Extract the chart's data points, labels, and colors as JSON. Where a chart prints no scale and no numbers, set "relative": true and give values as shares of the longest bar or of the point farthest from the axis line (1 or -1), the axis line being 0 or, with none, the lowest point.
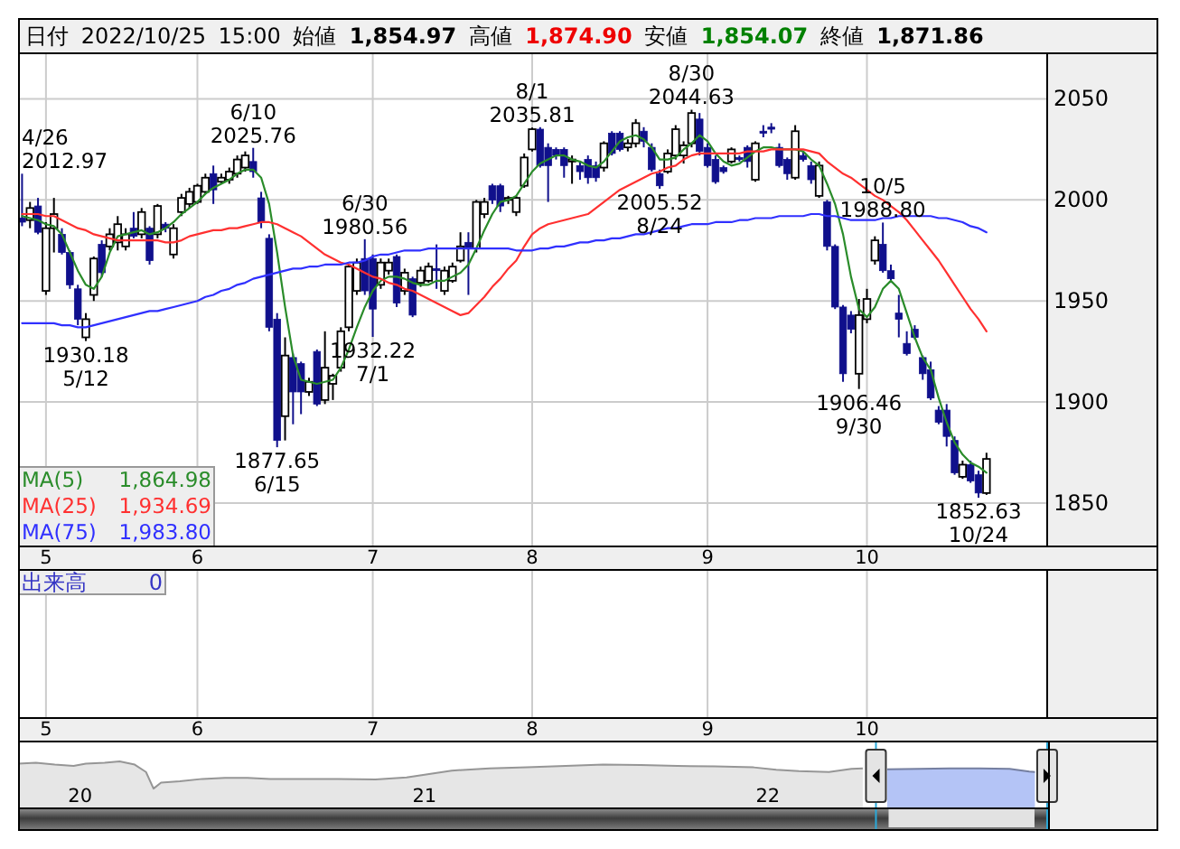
{
  "chart_data": [
    {
      "type": "candlestick",
      "title": "日付 2022/10/25 15:00 始値 1,854.97 高値 1,874.90 安値 1,854.07 終値 1,871.86",
      "categories": [
        null,
        null,
        null,
        "5",
        null,
        null,
        null,
        null,
        null,
        null,
        null,
        null,
        null,
        null,
        null,
        null,
        null,
        null,
        null,
        null,
        null,
        null,
        "6",
        null,
        null,
        null,
        null,
        null,
        null,
        null,
        null,
        null,
        null,
        null,
        null,
        null,
        null,
        null,
        null,
        null,
        null,
        null,
        null,
        null,
        "7",
        null,
        null,
        null,
        null,
        null,
        null,
        null,
        null,
        null,
        null,
        null,
        null,
        null,
        null,
        null,
        null,
        null,
        null,
        null,
        "8",
        null,
        null,
        null,
        null,
        null,
        null,
        null,
        null,
        null,
        null,
        null,
        null,
        null,
        null,
        null,
        null,
        null,
        null,
        null,
        null,
        null,
        "9",
        null,
        null,
        null,
        null,
        null,
        null,
        null,
        null,
        null,
        null,
        null,
        null,
        null,
        null,
        null,
        null,
        null,
        null,
        null,
        "10",
        null,
        null,
        null,
        null,
        null,
        null,
        null,
        null,
        null,
        null,
        null,
        null,
        null,
        null,
        null
      ],
      "ohlc": [
        [
          1991,
          2012.97,
          1987,
          1989
        ],
        [
          1990,
          1999,
          1986,
          1996
        ],
        [
          1997,
          2001,
          1983,
          1984
        ],
        [
          1955,
          1989,
          1953,
          1986
        ],
        [
          1986,
          2001,
          1974,
          1993
        ],
        [
          1983,
          1986,
          1973,
          1974
        ],
        [
          1974,
          1975,
          1956,
          1958
        ],
        [
          1956,
          1958,
          1938,
          1941
        ],
        [
          1932,
          1944,
          1930.18,
          1941
        ],
        [
          1953,
          1972,
          1950,
          1971
        ],
        [
          1978,
          1980,
          1962,
          1964
        ],
        [
          1977,
          1986,
          1975,
          1983
        ],
        [
          1979,
          1992,
          1975,
          1988
        ],
        [
          1977,
          1986,
          1975,
          1983
        ],
        [
          1986,
          1994,
          1981,
          1982
        ],
        [
          1983,
          1996,
          1981,
          1994
        ],
        [
          1986,
          1987,
          1968,
          1970
        ],
        [
          1983,
          1998,
          1981,
          1997
        ],
        [
          1988,
          1989,
          1984,
          1986
        ],
        [
          1973,
          1988,
          1971,
          1986
        ],
        [
          1994,
          2003,
          1992,
          2001
        ],
        [
          1998,
          2006,
          1996,
          2004
        ],
        [
          1999,
          2008,
          1998,
          2007
        ],
        [
          2004,
          2013,
          2003,
          2011
        ],
        [
          2013,
          2017,
          1998,
          2005
        ],
        [
          2009,
          2013,
          2008,
          2011
        ],
        [
          2010,
          2016,
          2008,
          2014
        ],
        [
          2013,
          2022,
          2011,
          2020
        ],
        [
          2016,
          2024,
          2014,
          2022
        ],
        [
          2019,
          2025.76,
          2011,
          2014
        ],
        [
          2001,
          2004,
          1986,
          1989
        ],
        [
          1981,
          1983,
          1935,
          1937
        ],
        [
          1941,
          1944,
          1877.65,
          1881
        ],
        [
          1893,
          1932,
          1881,
          1923
        ],
        [
          1922,
          1924,
          1889,
          1905
        ],
        [
          1919,
          1920,
          1894,
          1905
        ],
        [
          1905,
          1912,
          1903,
          1910
        ],
        [
          1925,
          1926,
          1898,
          1899
        ],
        [
          1901,
          1935,
          1899,
          1917
        ],
        [
          1909,
          1914,
          1901,
          1913
        ],
        [
          1917,
          1937,
          1915,
          1935
        ],
        [
          1937,
          1968,
          1935,
          1967
        ],
        [
          1955,
          1971,
          1953,
          1969
        ],
        [
          1971,
          1980.56,
          1953,
          1955
        ],
        [
          1971,
          1973,
          1932.22,
          1946
        ],
        [
          1958,
          1971,
          1956,
          1969
        ],
        [
          1965,
          1971,
          1963,
          1969
        ],
        [
          1972,
          1973,
          1947,
          1949
        ],
        [
          1955,
          1966,
          1953,
          1964
        ],
        [
          1961,
          1962,
          1942,
          1943
        ],
        [
          1959,
          1967,
          1957,
          1965
        ],
        [
          1960,
          1969,
          1959,
          1967
        ],
        [
          1966,
          1978,
          1956,
          1965
        ],
        [
          1955,
          1967,
          1953,
          1965
        ],
        [
          1960,
          1969,
          1959,
          1967
        ],
        [
          1970,
          1984,
          1969,
          1977
        ],
        [
          1979,
          1984,
          1953,
          1976
        ],
        [
          1976,
          2000,
          1974,
          1999
        ],
        [
          1993,
          2001,
          1991,
          1999
        ],
        [
          2007,
          2008,
          1998,
          2000
        ],
        [
          2007,
          2008,
          1994,
          1997
        ],
        [
          2000,
          2002,
          1998,
          2001
        ],
        [
          1994,
          2002,
          1992,
          2001
        ],
        [
          2007,
          2023,
          2006,
          2021
        ],
        [
          2025,
          2035.81,
          2024,
          2035
        ],
        [
          2035,
          2036,
          2016,
          2017
        ],
        [
          2026,
          2028,
          1999,
          2017
        ],
        [
          2025,
          2026,
          2020,
          2022
        ],
        [
          2025,
          2026,
          2011,
          2017
        ],
        [
          2019,
          2022,
          2008,
          2020
        ],
        [
          2017,
          2019,
          2010,
          2014
        ],
        [
          2020,
          2022,
          2008,
          2011
        ],
        [
          2017,
          2019,
          2009,
          2011
        ],
        [
          2016,
          2029,
          2014,
          2028
        ],
        [
          2033,
          2034,
          2022,
          2023
        ],
        [
          2033,
          2034,
          2024,
          2025
        ],
        [
          2026,
          2030,
          2024,
          2028
        ],
        [
          2028,
          2040,
          2026,
          2038
        ],
        [
          2034,
          2036,
          2026,
          2029
        ],
        [
          2026,
          2028,
          2014,
          2015
        ],
        [
          2013,
          2015,
          2005.52,
          2007
        ],
        [
          2014,
          2025,
          2013,
          2023
        ],
        [
          2022,
          2037,
          2020,
          2035
        ],
        [
          2022,
          2029,
          2018,
          2027
        ],
        [
          2028,
          2044.63,
          2026,
          2043
        ],
        [
          2040,
          2043,
          2022,
          2024
        ],
        [
          2026,
          2028,
          2016,
          2017
        ],
        [
          2020,
          2022,
          2008,
          2009
        ],
        [
          2016,
          2017,
          2013,
          2014
        ],
        [
          2019,
          2026,
          2018,
          2025
        ],
        [
          2021,
          2022,
          2019,
          2020
        ],
        [
          2026,
          2027,
          2016,
          2019
        ],
        [
          2010,
          2029,
          2009,
          2028
        ],
        [
          2034,
          2037,
          2031,
          2033
        ],
        [
          2036,
          2038,
          2033,
          2035
        ],
        [
          2026,
          2028,
          2016,
          2017
        ],
        [
          2020,
          2021,
          2010,
          2013
        ],
        [
          2011,
          2037,
          2010,
          2034
        ],
        [
          2022,
          2024,
          2019,
          2020
        ],
        [
          2017,
          2019,
          2008,
          2010
        ],
        [
          2002,
          2019,
          2001,
          2017
        ],
        [
          1999,
          2000,
          1975,
          1977
        ],
        [
          1977,
          1978,
          1946,
          1947
        ],
        [
          1947,
          1948,
          1910,
          1914
        ],
        [
          1943,
          1945,
          1934,
          1936
        ],
        [
          1914,
          1951,
          1906.46,
          1943
        ],
        [
          1941,
          1956,
          1939,
          1951
        ],
        [
          1970,
          1982,
          1968,
          1980
        ],
        [
          1978,
          1988.8,
          1964,
          1965
        ],
        [
          1965,
          1968,
          1959,
          1961
        ],
        [
          1944,
          1953,
          1932,
          1941
        ],
        [
          1929,
          1935,
          1923,
          1924
        ],
        [
          1936,
          1938,
          1931,
          1932
        ],
        [
          1922,
          1923,
          1911,
          1914
        ],
        [
          1916,
          1920,
          1901,
          1902
        ],
        [
          1896,
          1898,
          1889,
          1890
        ],
        [
          1896,
          1899,
          1878,
          1883
        ],
        [
          1881,
          1883,
          1864,
          1865
        ],
        [
          1863,
          1871,
          1862,
          1869
        ],
        [
          1869,
          1871,
          1860,
          1861
        ],
        [
          1864,
          1866,
          1852.63,
          1855
        ],
        [
          1854.97,
          1874.9,
          1854.07,
          1871.86
        ]
      ],
      "series": [
        {
          "name": "MA(5) 1,864.98",
          "type": "line",
          "color": "#2a8c2a",
          "values": [
            1992,
            1991,
            1990,
            1988,
            1987,
            1983,
            1974,
            1965,
            1958,
            1956,
            1962,
            1974,
            1982,
            1983,
            1984,
            1985,
            1983,
            1984,
            1986,
            1989,
            1993,
            1996,
            1999,
            2003,
            2006,
            2008,
            2010,
            2013,
            2015,
            2015,
            2011,
            1998,
            1974,
            1947,
            1923,
            1911,
            1910,
            1909,
            1910,
            1911,
            1917,
            1926,
            1937,
            1947,
            1955,
            1960,
            1962,
            1962,
            1961,
            1959,
            1958,
            1958,
            1960,
            1960,
            1962,
            1964,
            1968,
            1976,
            1985,
            1993,
            1999,
            2000,
            2002,
            2008,
            2014,
            2018,
            2020,
            2022,
            2022,
            2020,
            2019,
            2017,
            2016,
            2019,
            2024,
            2029,
            2031,
            2032,
            2030,
            2026,
            2020,
            2020,
            2021,
            2025,
            2028,
            2032,
            2029,
            2023,
            2019,
            2017,
            2018,
            2021,
            2024,
            2026,
            2026,
            2025,
            2025,
            2025,
            2024,
            2020,
            2017,
            2008,
            1998,
            1983,
            1962,
            1946,
            1942,
            1947,
            1956,
            1960,
            1956,
            1944,
            1932,
            1922,
            1916,
            1902,
            1890,
            1880,
            1874,
            1870,
            1868,
            1865
          ]
        },
        {
          "name": "MA(25) 1,934.69",
          "type": "line",
          "color": "#ff3030",
          "values": [
            1993,
            1993,
            1993,
            1992,
            1992,
            1990,
            1988,
            1986,
            1985,
            1983,
            1982,
            1981,
            1980,
            1980,
            1980,
            1980,
            1980,
            1980,
            1979,
            1979,
            1980,
            1982,
            1983,
            1984,
            1985,
            1985,
            1986,
            1986,
            1987,
            1988,
            1989,
            1989,
            1988,
            1986,
            1984,
            1982,
            1979,
            1976,
            1973,
            1971,
            1969,
            1968,
            1966,
            1964,
            1962,
            1961,
            1959,
            1958,
            1956,
            1955,
            1953,
            1951,
            1949,
            1947,
            1945,
            1943,
            1944,
            1948,
            1952,
            1957,
            1961,
            1966,
            1970,
            1977,
            1983,
            1986,
            1988,
            1989,
            1990,
            1991,
            1992,
            1993,
            1996,
            1999,
            2002,
            2005,
            2007,
            2009,
            2011,
            2013,
            2014,
            2016,
            2017,
            2020,
            2022,
            2023,
            2023,
            2023,
            2023,
            2023,
            2023,
            2024,
            2024,
            2024,
            2025,
            2025,
            2025,
            2025,
            2025,
            2024,
            2023,
            2019,
            2016,
            2013,
            2011,
            2008,
            2005,
            2002,
            2000,
            1997,
            1994,
            1990,
            1985,
            1980,
            1975,
            1970,
            1964,
            1958,
            1952,
            1946,
            1941,
            1935
          ]
        },
        {
          "name": "MA(75) 1,983.80",
          "type": "line",
          "color": "#3030ff",
          "values": [
            1939,
            1939,
            1939,
            1939,
            1939,
            1938,
            1938,
            1937,
            1937,
            1938,
            1939,
            1940,
            1941,
            1942,
            1943,
            1944,
            1945,
            1945,
            1946,
            1947,
            1948,
            1949,
            1950,
            1952,
            1953,
            1955,
            1956,
            1958,
            1959,
            1961,
            1962,
            1963,
            1964,
            1965,
            1966,
            1966,
            1967,
            1967,
            1968,
            1968,
            1968,
            1969,
            1969,
            1970,
            1972,
            1973,
            1973,
            1974,
            1975,
            1975,
            1975,
            1976,
            1976,
            1976,
            1976,
            1976,
            1976,
            1976,
            1976,
            1976,
            1976,
            1976,
            1975,
            1975,
            1975,
            1976,
            1976,
            1977,
            1977,
            1978,
            1979,
            1979,
            1980,
            1980,
            1981,
            1981,
            1982,
            1983,
            1983,
            1984,
            1985,
            1986,
            1986,
            1987,
            1988,
            1988,
            1988,
            1989,
            1989,
            1989,
            1990,
            1990,
            1991,
            1991,
            1991,
            1992,
            1992,
            1992,
            1992,
            1993,
            1993,
            1992,
            1992,
            1991,
            1990,
            1990,
            1990,
            1990,
            1991,
            1991,
            1992,
            1992,
            1992,
            1992,
            1992,
            1991,
            1991,
            1990,
            1989,
            1987,
            1986,
            1984
          ]
        }
      ],
      "ylim": [
        1829,
        2073
      ],
      "yticks": [
        1850,
        1900,
        1950,
        2000,
        2050
      ],
      "grid": true,
      "legend": "bottom left",
      "annotations": [
        "4/26\n2012.97",
        {
          "text": "1930.18\n5/12",
          "y": 1930.18
        },
        {
          "text": "6/10\n2025.76",
          "y": 2025.76
        },
        {
          "text": "1877.65\n6/15",
          "y": 1877.65
        },
        {
          "text": "6/30\n1980.56",
          "y": 1980.56
        },
        {
          "text": "1932.22\n7/1",
          "y": 1932.22
        },
        {
          "text": "8/1\n2035.81",
          "y": 2035.81
        },
        {
          "text": "2005.52\n8/24",
          "y": 2005.52
        },
        {
          "text": "8/30\n2044.63",
          "y": 2044.63
        },
        {
          "text": "1906.46\n9/30",
          "y": 1906.46
        },
        {
          "text": "10/5\n1988.80",
          "y": 1988.8
        },
        {
          "text": "1852.63\n10/24",
          "y": 1852.63
        }
      ]
    },
    {
      "type": "other",
      "title": "出来高",
      "annotations": [
        "0"
      ],
      "categories": [
        null,
        null,
        null,
        "5",
        null,
        null,
        null,
        null,
        null,
        null,
        null,
        null,
        null,
        null,
        null,
        null,
        null,
        null,
        null,
        null,
        null,
        null,
        "6",
        null,
        null,
        null,
        null,
        null,
        null,
        null,
        null,
        null,
        null,
        null,
        null,
        null,
        null,
        null,
        null,
        null,
        null,
        null,
        null,
        null,
        "7",
        null,
        null,
        null,
        null,
        null,
        null,
        null,
        null,
        null,
        null,
        null,
        null,
        null,
        null,
        null,
        null,
        null,
        null,
        null,
        "8",
        null,
        null,
        null,
        null,
        null,
        null,
        null,
        null,
        null,
        null,
        null,
        null,
        null,
        null,
        null,
        null,
        null,
        null,
        null,
        null,
        null,
        "9",
        null,
        null,
        null,
        null,
        null,
        null,
        null,
        null,
        null,
        null,
        null,
        null,
        null,
        null,
        null,
        null,
        null,
        null,
        null,
        "10",
        null,
        null,
        null,
        null,
        null,
        null,
        null,
        null,
        null,
        null,
        null,
        null,
        null,
        null,
        null
      ]
    },
    {
      "type": "area",
      "relative": true,
      "series": [
        {
          "type": "area",
          "color": "#e6e6e6",
          "x": [
            "2019-10-27",
            "2019-11-15",
            "2019-12-05",
            "2019-12-25",
            "2020-01-07",
            "2020-01-27",
            "2020-02-12",
            "2020-02-28",
            "2020-03-11",
            "2020-03-19",
            "2020-03-27",
            "2020-04-16",
            "2020-05-10",
            "2020-06-03",
            "2020-06-27",
            "2020-07-21",
            "2020-08-22",
            "2020-10-01",
            "2020-11-10",
            "2020-12-13",
            "2020-12-29",
            "2021-01-30",
            "2021-03-11",
            "2021-04-20",
            "2021-05-31",
            "2021-07-10",
            "2021-08-19",
            "2021-09-27",
            "2021-11-06",
            "2021-12-17",
            "2022-01-10",
            "2022-02-03",
            "2022-03-07",
            "2022-03-31",
            "2022-04-12"
          ],
          "values": [
            0.95,
            0.97,
            0.93,
            0.9,
            0.95,
            0.97,
            1,
            0.93,
            0.77,
            0.41,
            0.54,
            0.57,
            0.62,
            0.64,
            0.64,
            0.62,
            0.62,
            0.62,
            0.61,
            0.65,
            0.7,
            0.8,
            0.85,
            0.87,
            0.9,
            0.93,
            0.92,
            0.9,
            0.89,
            0.87,
            0.82,
            0.79,
            0.77,
            0.84,
            0.85
          ]
        },
        {
          "type": "area",
          "color": "#b4c4f6",
          "x": [
            "2022-05-08",
            "2022-06-11",
            "2022-07-13",
            "2022-08-14",
            "2022-09-15",
            "2022-10-06",
            "2022-10-12"
          ],
          "values": [
            0.83,
            0.84,
            0.85,
            0.85,
            0.84,
            0.78,
            0.77
          ]
        }
      ],
      "xlim": [
        "2019-10-27",
        "2022-10-26"
      ],
      "xticks": [
        {
          "value": "2020-01-01",
          "label": "20"
        },
        {
          "value": "2021-01-01",
          "label": "21"
        },
        {
          "value": "2022-01-01",
          "label": "22"
        }
      ],
      "ref_lines": [
        {
          "axis": "x",
          "value": "2022-04-26",
          "color": "#2aa8d8"
        },
        {
          "axis": "x",
          "value": "2022-10-25",
          "color": "#2aa8d8"
        }
      ]
    }
  ]
}
